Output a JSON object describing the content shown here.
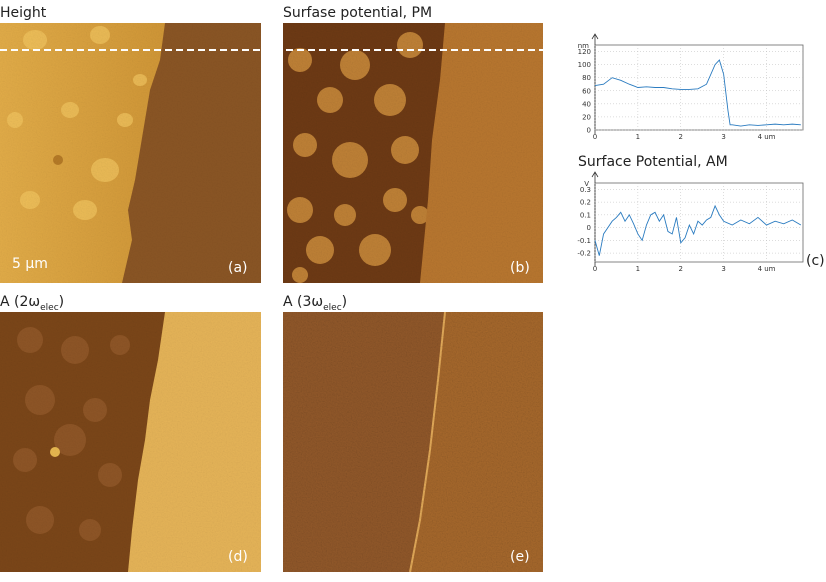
{
  "panels": [
    {
      "title": "Height",
      "label": "(a)",
      "scale": "5 μm"
    },
    {
      "title": "Surfase potential, PM",
      "label": "(b)"
    },
    {
      "title": "A (2ω",
      "title_sub": "elec",
      "title_end": ")",
      "label": "(d)"
    },
    {
      "title": "A (3ω",
      "title_sub": "elec",
      "title_end": ")",
      "label": "(e)"
    }
  ],
  "chart_panel_label": "(c)",
  "chart_data": [
    {
      "type": "line",
      "y_unit": "nm",
      "x": [
        0,
        0.2,
        0.4,
        0.6,
        0.8,
        1.0,
        1.2,
        1.4,
        1.6,
        1.8,
        2.0,
        2.2,
        2.4,
        2.6,
        2.8,
        2.9,
        3.0,
        3.1,
        3.15,
        3.2,
        3.4,
        3.6,
        3.8,
        4.0,
        4.2,
        4.4,
        4.6,
        4.8
      ],
      "series": [
        {
          "color": "#2a7bc0",
          "values": [
            68,
            70,
            80,
            76,
            70,
            65,
            66,
            65,
            65,
            63,
            62,
            62,
            63,
            70,
            100,
            107,
            85,
            30,
            8,
            8,
            6,
            8,
            7,
            8,
            9,
            8,
            9,
            8
          ]
        }
      ],
      "xlim": [
        0,
        4.85
      ],
      "ylim": [
        0,
        130
      ],
      "xticks": [
        0,
        1,
        2,
        3,
        {
          "value": 4,
          "label": "4 um"
        }
      ],
      "yticks": [
        0,
        20,
        40,
        60,
        80,
        100,
        120
      ],
      "grid": true
    },
    {
      "type": "line",
      "title": "Surface Potential, AM",
      "y_unit": "V",
      "x": [
        0,
        0.1,
        0.2,
        0.3,
        0.4,
        0.5,
        0.6,
        0.7,
        0.8,
        0.9,
        1.0,
        1.1,
        1.2,
        1.3,
        1.4,
        1.5,
        1.6,
        1.7,
        1.8,
        1.9,
        2.0,
        2.1,
        2.2,
        2.3,
        2.4,
        2.5,
        2.6,
        2.7,
        2.8,
        2.9,
        3.0,
        3.2,
        3.4,
        3.6,
        3.8,
        4.0,
        4.2,
        4.4,
        4.6,
        4.8
      ],
      "series": [
        {
          "color": "#2a7bc0",
          "values": [
            -0.1,
            -0.22,
            -0.05,
            0,
            0.05,
            0.08,
            0.12,
            0.05,
            0.1,
            0.03,
            -0.05,
            -0.1,
            0.02,
            0.1,
            0.12,
            0.05,
            0.1,
            -0.03,
            -0.05,
            0.08,
            -0.12,
            -0.08,
            0.02,
            -0.05,
            0.05,
            0.02,
            0.06,
            0.08,
            0.17,
            0.1,
            0.05,
            0.02,
            0.06,
            0.03,
            0.08,
            0.02,
            0.05,
            0.03,
            0.06,
            0.02
          ]
        }
      ],
      "xlim": [
        0,
        4.85
      ],
      "ylim": [
        -0.27,
        0.35
      ],
      "xticks": [
        0,
        1,
        2,
        3,
        {
          "value": 4,
          "label": "4 um"
        }
      ],
      "yticks": [
        -0.2,
        -0.1,
        0,
        0.1,
        0.2,
        0.3
      ],
      "grid": true
    }
  ]
}
